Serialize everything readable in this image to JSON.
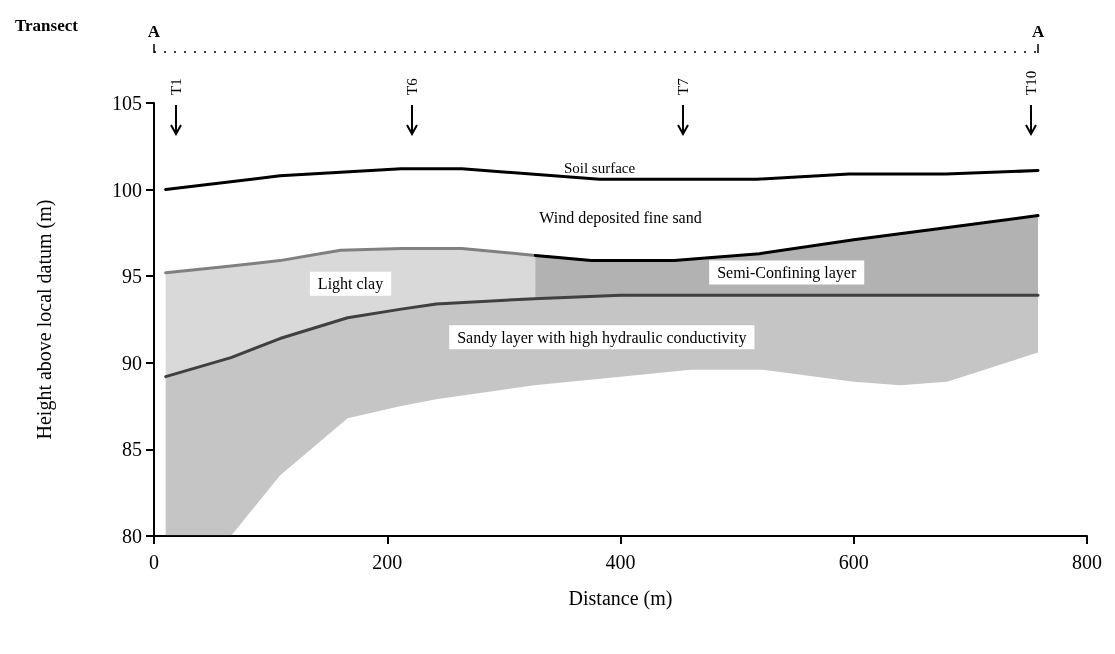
{
  "chart_data": {
    "type": "line",
    "title": "Transect",
    "xlabel": "Distance (m)",
    "ylabel": "Height above local datum (m)",
    "xlim": [
      0,
      800
    ],
    "xticks": [
      0,
      200,
      400,
      600,
      800
    ],
    "ylim": [
      80,
      105
    ],
    "yticks": [
      80,
      85,
      90,
      95,
      100,
      105
    ],
    "grid": false,
    "legend": false,
    "marker": "none",
    "line_style": "solid",
    "series": [
      {
        "name": "Soil surface",
        "color": "#000000",
        "x": [
          10,
          108,
          212,
          264,
          382,
          517,
          596,
          679,
          758
        ],
        "values": [
          100.0,
          100.8,
          101.2,
          101.2,
          100.6,
          100.6,
          100.9,
          100.9,
          101.1
        ]
      },
      {
        "name": "Light clay",
        "color": "#808080",
        "x": [
          10,
          60,
          108,
          160,
          212,
          264,
          327
        ],
        "values": [
          95.2,
          95.55,
          95.9,
          96.5,
          96.6,
          96.6,
          96.2
        ],
        "lower": [
          89.2,
          90.2,
          91.4,
          92.5,
          93.1,
          93.5,
          93.7
        ],
        "upper": [
          95.2,
          95.55,
          95.9,
          96.5,
          96.6,
          96.6,
          96.2
        ]
      },
      {
        "name": "Semi-Confining layer",
        "color": "#000000",
        "x": [
          327,
          375,
          446,
          519,
          600,
          679,
          758
        ],
        "values": [
          96.2,
          95.9,
          95.9,
          96.3,
          97.1,
          97.8,
          98.5
        ],
        "lower": [
          93.7,
          93.8,
          93.9,
          93.9,
          93.9,
          93.9,
          93.9
        ],
        "upper": [
          96.2,
          95.9,
          95.9,
          96.3,
          97.1,
          97.8,
          98.5
        ]
      },
      {
        "name": "Sandy layer with high hydraulic conductivity",
        "color": "#404040",
        "x": [
          10,
          66,
          108,
          166,
          212,
          242,
          326,
          400,
          460,
          522,
          600,
          640,
          680,
          758
        ],
        "values": [
          89.2,
          90.3,
          91.4,
          92.6,
          93.1,
          93.4,
          93.7,
          93.9,
          93.9,
          93.9,
          93.9,
          93.9,
          93.9,
          93.9
        ],
        "lower": [
          80,
          80,
          83.5,
          86.8,
          87.5,
          87.9,
          88.7,
          89.2,
          89.6,
          89.6,
          88.9,
          88.7,
          88.9,
          90.6
        ],
        "upper": [
          89.2,
          90.3,
          91.4,
          92.6,
          93.1,
          93.4,
          93.7,
          93.9,
          93.9,
          93.9,
          93.9,
          93.9,
          93.9,
          93.9
        ]
      }
    ],
    "ref_lines": [
      {
        "axis": "x",
        "value": 19,
        "label": "T1"
      },
      {
        "axis": "x",
        "value": 221,
        "label": "T6"
      },
      {
        "axis": "x",
        "value": 454,
        "label": "T7"
      },
      {
        "axis": "x",
        "value": 752,
        "label": "T10"
      }
    ],
    "annotations": [
      "A",
      "A",
      "Wind deposited fine sand"
    ]
  }
}
